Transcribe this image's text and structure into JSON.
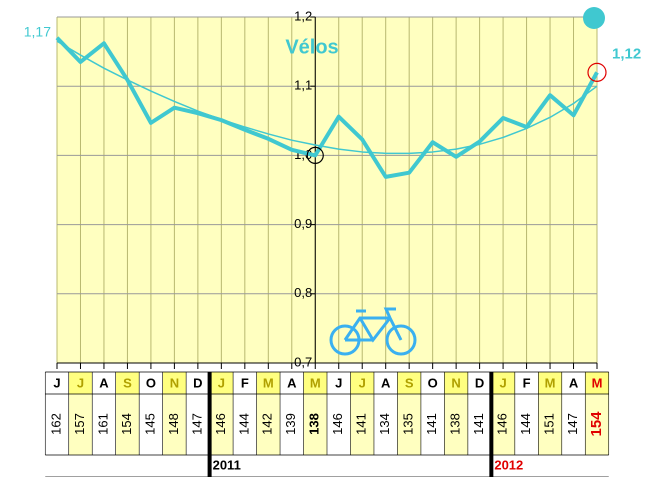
{
  "chart_data": {
    "type": "line",
    "title": "Vélos",
    "categories": [
      "J",
      "J",
      "A",
      "S",
      "O",
      "N",
      "D",
      "J",
      "F",
      "M",
      "A",
      "M",
      "J",
      "J",
      "A",
      "S",
      "O",
      "N",
      "D",
      "J",
      "F",
      "M",
      "A",
      "M"
    ],
    "series": [
      {
        "color": "#40c8d0",
        "values": [
          1.17,
          1.135,
          1.162,
          1.109,
          1.047,
          1.069,
          1.061,
          1.051,
          1.037,
          1.024,
          1.008,
          1.0,
          1.056,
          1.023,
          0.969,
          0.975,
          1.019,
          0.998,
          1.02,
          1.054,
          1.041,
          1.087,
          1.058,
          1.12
        ],
        "value_labels": [
          "1,17",
          null,
          null,
          null,
          null,
          null,
          null,
          null,
          null,
          null,
          null,
          null,
          null,
          null,
          null,
          null,
          null,
          null,
          null,
          null,
          null,
          null,
          null,
          "1,12"
        ]
      },
      {
        "color": "#40c8d0",
        "values": [
          1.165,
          1.145,
          1.126,
          1.109,
          1.093,
          1.078,
          1.064,
          1.052,
          1.041,
          1.031,
          1.022,
          1.015,
          1.009,
          1.005,
          1.003,
          1.003,
          1.005,
          1.009,
          1.016,
          1.026,
          1.039,
          1.055,
          1.075,
          1.1
        ]
      }
    ],
    "counts": [
      162,
      157,
      161,
      154,
      145,
      148,
      147,
      146,
      144,
      142,
      139,
      138,
      146,
      141,
      134,
      135,
      141,
      138,
      141,
      146,
      144,
      151,
      147,
      154
    ],
    "years": [
      "2011",
      "2012"
    ],
    "ylim": [
      0.7,
      1.2
    ],
    "yticks": [
      {
        "value": 0.7,
        "label": "0,7"
      },
      {
        "value": 0.8,
        "label": "0,8"
      },
      {
        "value": 0.9,
        "label": "0,9"
      },
      {
        "value": 1.0,
        "label": "1,0"
      },
      {
        "value": 1.1,
        "label": "1,1"
      },
      {
        "value": 1.2,
        "label": "1,2"
      }
    ],
    "grid": true
  }
}
